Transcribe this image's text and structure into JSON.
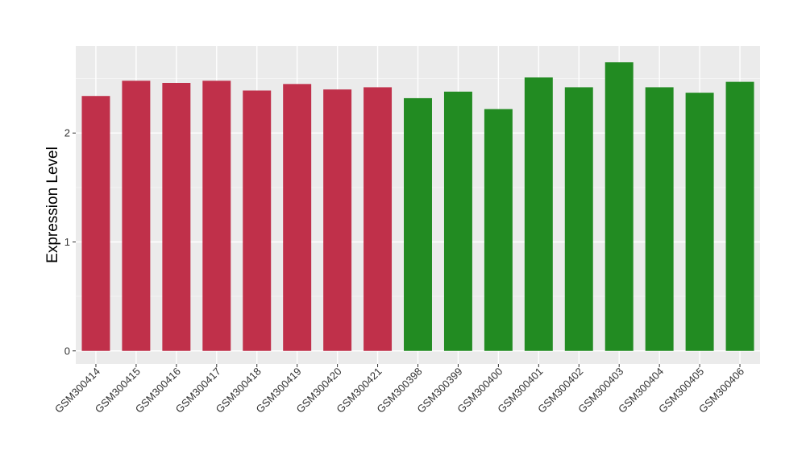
{
  "chart_data": {
    "type": "bar",
    "title": "",
    "xlabel": "",
    "ylabel": "Expression Level",
    "ylim": [
      -0.12,
      2.8
    ],
    "yticks": [
      0,
      1,
      2
    ],
    "grid": true,
    "legend": "none",
    "categories": [
      "GSM300414",
      "GSM300415",
      "GSM300416",
      "GSM300417",
      "GSM300418",
      "GSM300419",
      "GSM300420",
      "GSM300421",
      "GSM300398",
      "GSM300399",
      "GSM300400",
      "GSM300401",
      "GSM300402",
      "GSM300403",
      "GSM300404",
      "GSM300405",
      "GSM300406"
    ],
    "values": [
      2.34,
      2.48,
      2.46,
      2.48,
      2.39,
      2.45,
      2.4,
      2.42,
      2.32,
      2.38,
      2.22,
      2.51,
      2.42,
      2.65,
      2.42,
      2.37,
      2.47
    ],
    "bar_colors": [
      "#c0304a",
      "#c0304a",
      "#c0304a",
      "#c0304a",
      "#c0304a",
      "#c0304a",
      "#c0304a",
      "#c0304a",
      "#228b22",
      "#228b22",
      "#228b22",
      "#228b22",
      "#228b22",
      "#228b22",
      "#228b22",
      "#228b22",
      "#228b22"
    ]
  },
  "colors": {
    "panel_background": "#ebebeb",
    "grid_major": "#ffffff",
    "grid_minor": "#f5f5f5",
    "group_a": "#c0304a",
    "group_b": "#228b22"
  }
}
